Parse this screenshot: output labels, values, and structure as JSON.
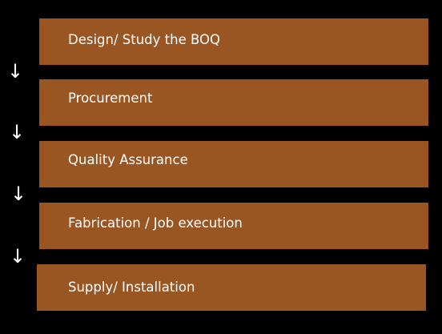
{
  "process": {
    "steps": [
      {
        "label": "Design/ Study the BOQ"
      },
      {
        "label": "Procurement"
      },
      {
        "label": "Quality Assurance"
      },
      {
        "label": "Fabrication / Job execution"
      },
      {
        "label": "Supply/ Installation"
      }
    ],
    "arrow_glyph": "↓"
  },
  "colors": {
    "background": "#000000",
    "box": "#995522",
    "text": "#ffffff"
  }
}
